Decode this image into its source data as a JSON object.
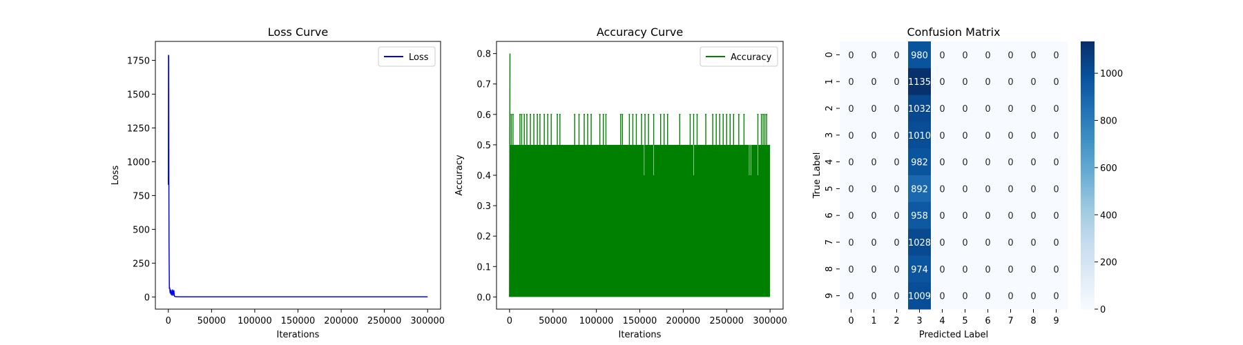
{
  "chart_data": [
    {
      "type": "line",
      "title": "Loss Curve",
      "xlabel": "Iterations",
      "ylabel": "Loss",
      "xlim": [
        -15000,
        315000
      ],
      "ylim": [
        -90,
        1890
      ],
      "xticks": [
        0,
        50000,
        100000,
        150000,
        200000,
        250000,
        300000
      ],
      "xtick_labels": [
        "0",
        "50000",
        "100000",
        "150000",
        "200000",
        "250000",
        "300000"
      ],
      "yticks": [
        0,
        250,
        500,
        750,
        1000,
        1250,
        1500,
        1750
      ],
      "ytick_labels": [
        "0",
        "250",
        "500",
        "750",
        "1000",
        "1250",
        "1500",
        "1750"
      ],
      "legend_position": "upper right",
      "series": [
        {
          "name": "Loss",
          "color": "#0000ff",
          "x": [
            0,
            200,
            400,
            600,
            800,
            1200,
            1600,
            2000,
            2400,
            2800,
            3200,
            3600,
            4000,
            4400,
            4800,
            5200,
            5600,
            6000,
            6400,
            6800,
            7200,
            8000,
            9000,
            10000,
            15000,
            30000,
            60000,
            100000,
            150000,
            200000,
            250000,
            300000
          ],
          "y": [
            830,
            1790,
            1780,
            900,
            400,
            60,
            70,
            30,
            55,
            20,
            50,
            15,
            40,
            10,
            55,
            20,
            45,
            10,
            50,
            15,
            5,
            3,
            2,
            2,
            1,
            1,
            1,
            1,
            1,
            1,
            1,
            1
          ]
        }
      ]
    },
    {
      "type": "line",
      "title": "Accuracy Curve",
      "xlabel": "Iterations",
      "ylabel": "Accuracy",
      "xlim": [
        -15000,
        315000
      ],
      "ylim": [
        -0.04,
        0.84
      ],
      "xticks": [
        0,
        50000,
        100000,
        150000,
        200000,
        250000,
        300000
      ],
      "xtick_labels": [
        "0",
        "50000",
        "100000",
        "150000",
        "200000",
        "250000",
        "300000"
      ],
      "yticks": [
        0.0,
        0.1,
        0.2,
        0.3,
        0.4,
        0.5,
        0.6,
        0.7,
        0.8
      ],
      "ytick_labels": [
        "0.0",
        "0.1",
        "0.2",
        "0.3",
        "0.4",
        "0.5",
        "0.6",
        "0.7",
        "0.8"
      ],
      "legend_position": "upper right",
      "series": [
        {
          "name": "Accuracy",
          "color": "#008000",
          "band": {
            "low": 0.0,
            "high": 0.5,
            "x_start": 0,
            "x_end": 300000
          },
          "x": [
            0,
            500
          ],
          "y": [
            0.0,
            0.8
          ],
          "spikes_to_0_6": [
            2000,
            4000,
            12000,
            14000,
            17000,
            20000,
            24000,
            28000,
            32000,
            35000,
            40000,
            44000,
            48000,
            55000,
            58000,
            75000,
            80000,
            86000,
            90000,
            94000,
            104000,
            108000,
            111000,
            128000,
            130000,
            138000,
            142000,
            146000,
            152000,
            156000,
            160000,
            166000,
            174000,
            178000,
            182000,
            196000,
            208000,
            212000,
            216000,
            226000,
            234000,
            238000,
            242000,
            246000,
            250000,
            254000,
            258000,
            264000,
            270000,
            286000,
            290000,
            292000,
            294000,
            296000
          ],
          "dips_to_0_4": [
            155000,
            166000,
            212000,
            276000,
            278000,
            286000
          ]
        }
      ]
    },
    {
      "type": "heatmap",
      "title": "Confusion Matrix",
      "xlabel": "Predicted Label",
      "ylabel": "True Label",
      "x_labels": [
        "0",
        "1",
        "2",
        "3",
        "4",
        "5",
        "6",
        "7",
        "8",
        "9"
      ],
      "y_labels": [
        "0",
        "1",
        "2",
        "3",
        "4",
        "5",
        "6",
        "7",
        "8",
        "9"
      ],
      "colormap": "Blues",
      "vmin": 0,
      "vmax": 1135,
      "colorbar_ticks": [
        0,
        200,
        400,
        600,
        800,
        1000
      ],
      "colorbar_tick_labels": [
        "0",
        "200",
        "400",
        "600",
        "800",
        "1000"
      ],
      "values": [
        [
          0,
          0,
          0,
          980,
          0,
          0,
          0,
          0,
          0,
          0
        ],
        [
          0,
          0,
          0,
          1135,
          0,
          0,
          0,
          0,
          0,
          0
        ],
        [
          0,
          0,
          0,
          1032,
          0,
          0,
          0,
          0,
          0,
          0
        ],
        [
          0,
          0,
          0,
          1010,
          0,
          0,
          0,
          0,
          0,
          0
        ],
        [
          0,
          0,
          0,
          982,
          0,
          0,
          0,
          0,
          0,
          0
        ],
        [
          0,
          0,
          0,
          892,
          0,
          0,
          0,
          0,
          0,
          0
        ],
        [
          0,
          0,
          0,
          958,
          0,
          0,
          0,
          0,
          0,
          0
        ],
        [
          0,
          0,
          0,
          1028,
          0,
          0,
          0,
          0,
          0,
          0
        ],
        [
          0,
          0,
          0,
          974,
          0,
          0,
          0,
          0,
          0,
          0
        ],
        [
          0,
          0,
          0,
          1009,
          0,
          0,
          0,
          0,
          0,
          0
        ]
      ]
    }
  ]
}
